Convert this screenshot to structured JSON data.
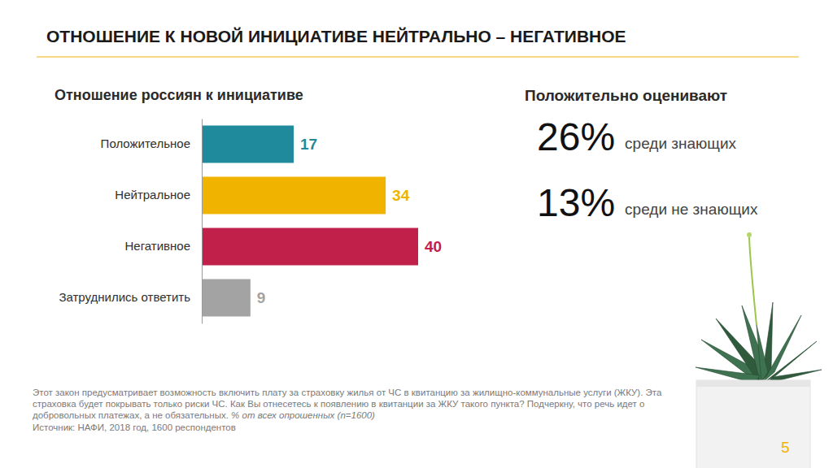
{
  "header": {
    "title": "ОТНОШЕНИЕ К НОВОЙ ИНИЦИАТИВЕ НЕЙТРАЛЬНО – НЕГАТИВНОЕ"
  },
  "chart_data": {
    "type": "bar",
    "orientation": "horizontal",
    "title": "Отношение россиян к инициативе",
    "categories": [
      "Положительное",
      "Нейтральное",
      "Негативное",
      "Затруднились ответить"
    ],
    "values": [
      17,
      34,
      40,
      9
    ],
    "colors": [
      "#1f8a9c",
      "#f0b400",
      "#c0204a",
      "#a3a3a3"
    ],
    "xlim": [
      0,
      40
    ],
    "data_labels": true,
    "tick_labels": "y"
  },
  "side_panel": {
    "title": "Положительно оценивают",
    "items": [
      {
        "value": "26%",
        "label": "среди знающих"
      },
      {
        "value": "13%",
        "label": "среди не знающих"
      }
    ]
  },
  "footnote": {
    "question": "Этот закон предусматривает возможность включить плату за страховку жилья от ЧС в квитанцию за жилищно-коммунальные услуги (ЖКУ). Эта страховка будет покрывать только риски ЧС. Как Вы отнесетесь к появлению в квитанции за ЖКУ такого пункта? Подчеркну, что речь идет о добровольных платежах, а не обязательных.",
    "base": "% от всех опрошенных (n=1600)",
    "source": "Источник: НАФИ, 2018 год, 1600 респондентов"
  },
  "page_number": 5
}
